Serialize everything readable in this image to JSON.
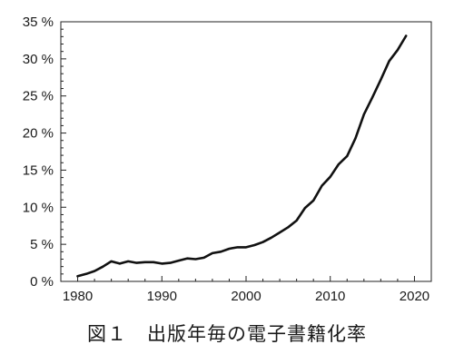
{
  "caption": "図１　出版年毎の電子書籍化率",
  "chart_data": {
    "type": "line",
    "title": "",
    "xlabel": "",
    "ylabel": "",
    "xlim": [
      1978,
      2022
    ],
    "ylim": [
      0,
      35
    ],
    "x_ticks": [
      1980,
      1990,
      2000,
      2010,
      2020
    ],
    "y_ticks": [
      0,
      5,
      10,
      15,
      20,
      25,
      30,
      35
    ],
    "y_tick_labels": [
      "0 %",
      "5 %",
      "10 %",
      "15 %",
      "20 %",
      "25 %",
      "30 %",
      "35 %"
    ],
    "grid": false,
    "line_color": "#111111",
    "series": [
      {
        "x": [
          1980,
          1981,
          1982,
          1983,
          1984,
          1985,
          1986,
          1987,
          1988,
          1989,
          1990,
          1991,
          1992,
          1993,
          1994,
          1995,
          1996,
          1997,
          1998,
          1999,
          2000,
          2001,
          2002,
          2003,
          2004,
          2005,
          2006,
          2007,
          2008,
          2009,
          2010,
          2011,
          2012,
          2013,
          2014,
          2015,
          2016,
          2017,
          2018,
          2019
        ],
        "y": [
          0.7,
          1.0,
          1.4,
          2.0,
          2.7,
          2.4,
          2.7,
          2.5,
          2.6,
          2.6,
          2.4,
          2.5,
          2.8,
          3.1,
          3.0,
          3.2,
          3.8,
          4.0,
          4.4,
          4.6,
          4.6,
          4.9,
          5.3,
          5.9,
          6.6,
          7.3,
          8.2,
          9.9,
          10.9,
          12.9,
          14.1,
          15.8,
          16.9,
          19.3,
          22.5,
          24.8,
          27.2,
          29.7,
          31.2,
          33.1
        ]
      }
    ]
  }
}
